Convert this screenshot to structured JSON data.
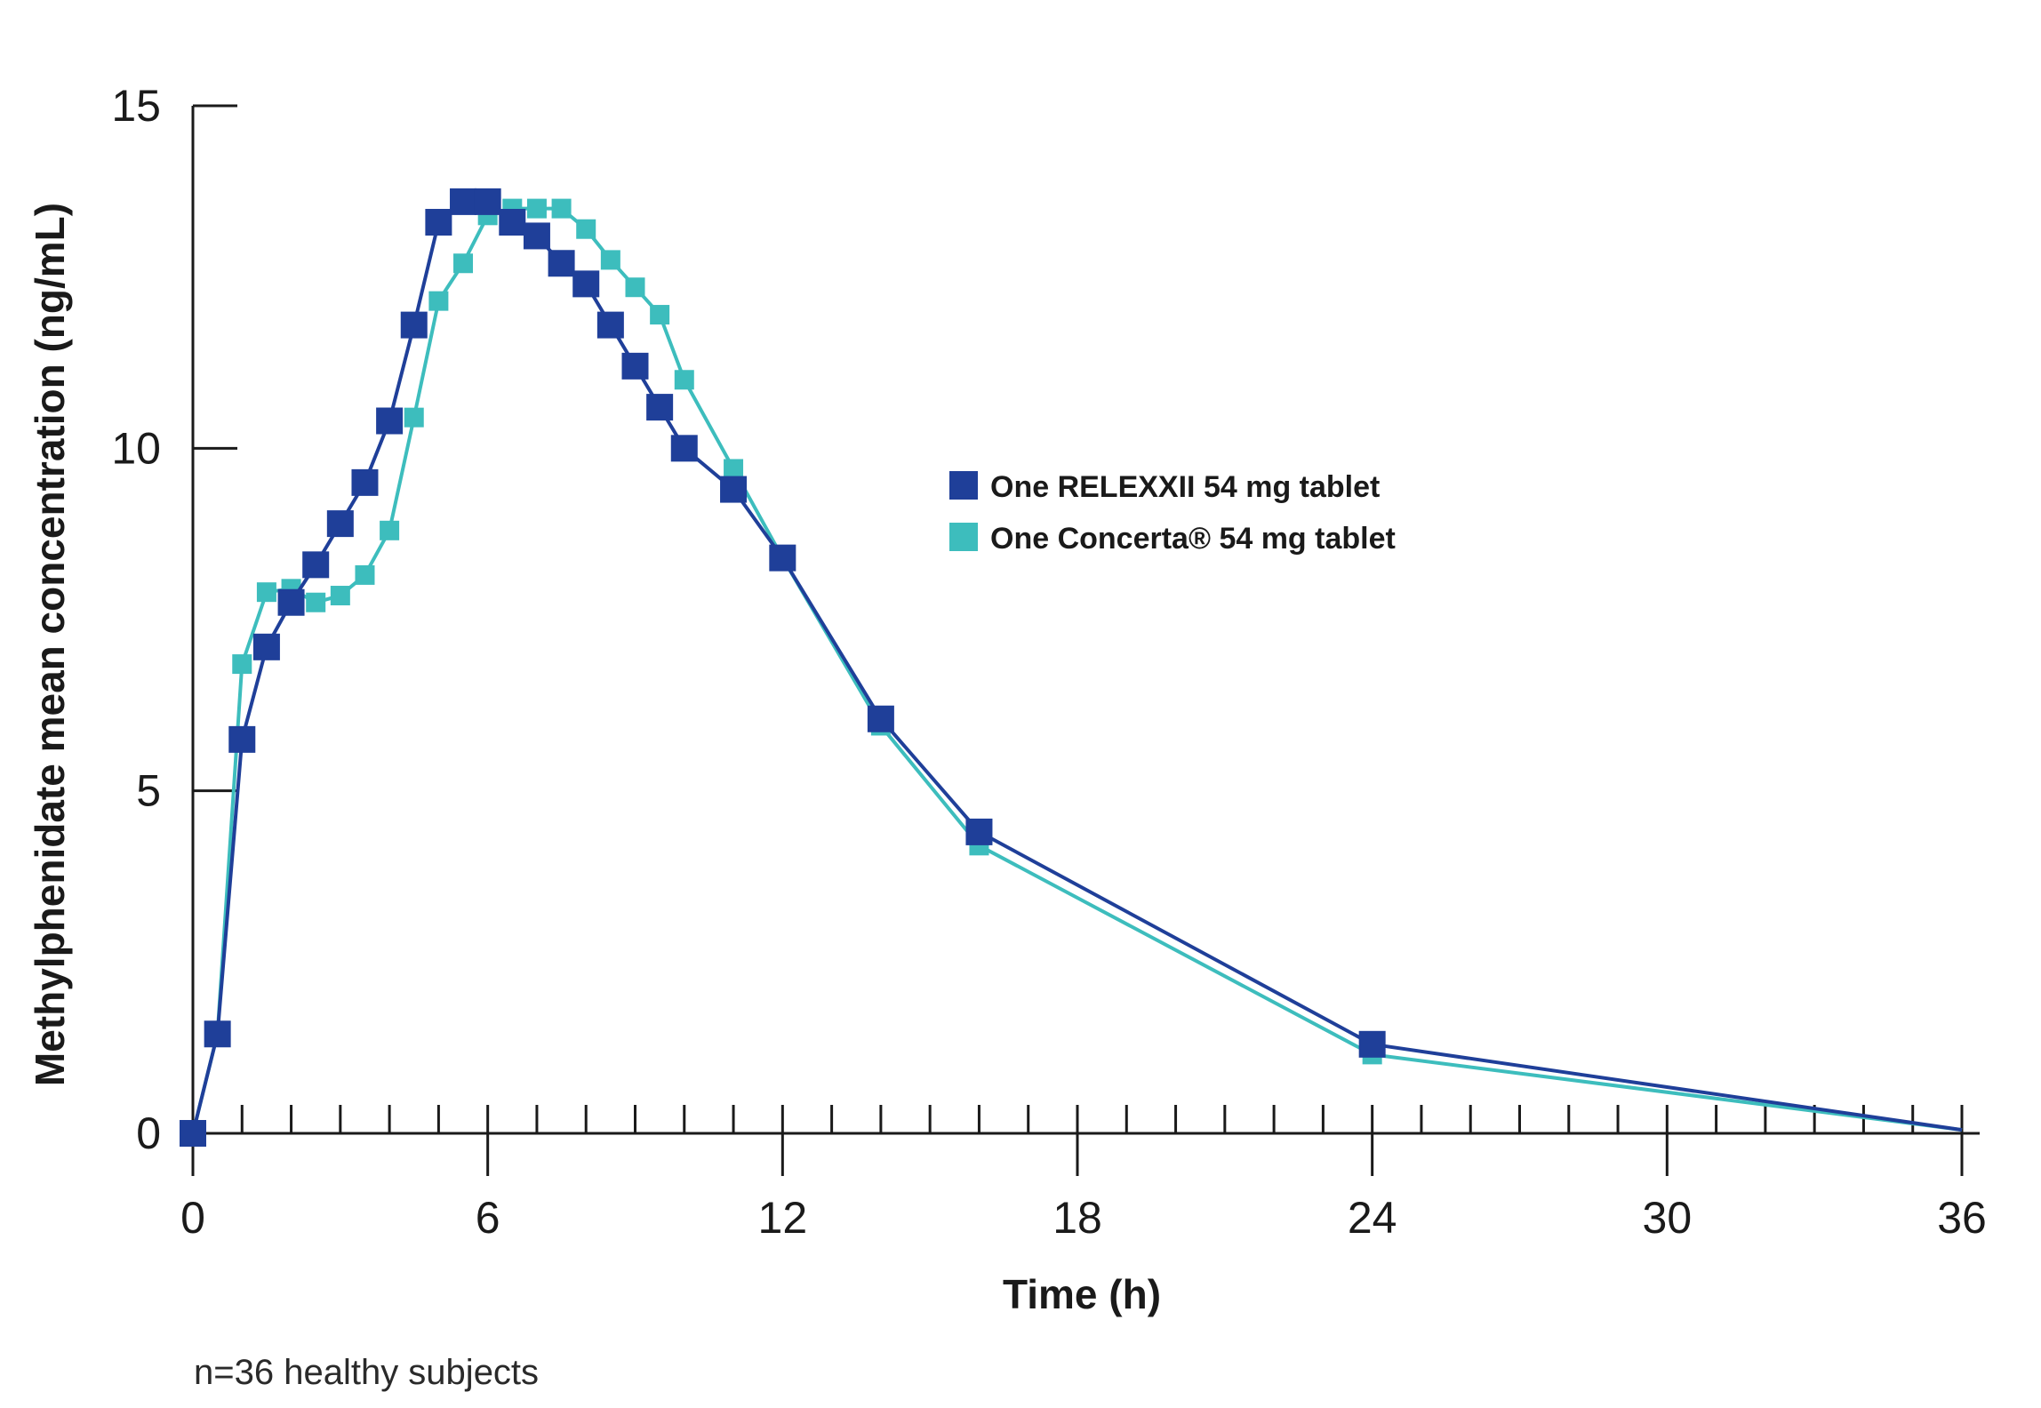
{
  "chart_data": {
    "type": "line",
    "title": "",
    "xlabel": "Time (h)",
    "ylabel": "Methylphenidate mean concentration (ng/mL)",
    "xlim": [
      0,
      36
    ],
    "ylim": [
      0,
      15
    ],
    "x_ticks": [
      0,
      6,
      12,
      18,
      24,
      30,
      36
    ],
    "x_tick_labels": [
      "0",
      "6",
      "12",
      "18",
      "24",
      "30",
      "36"
    ],
    "x_minor_tick_interval": 1,
    "y_ticks": [
      0,
      5,
      10,
      15
    ],
    "y_tick_labels": [
      "0",
      "5",
      "10",
      "15"
    ],
    "grid": false,
    "legend_position": "center-right",
    "footnote": "n=36 healthy subjects",
    "series": [
      {
        "name": "One RELEXXII 54 mg tablet",
        "color": "#1f3f99",
        "marker": "square",
        "points": [
          [
            0,
            0
          ],
          [
            0.5,
            1.45
          ],
          [
            1,
            5.75
          ],
          [
            1.5,
            7.1
          ],
          [
            2,
            7.75
          ],
          [
            2.5,
            8.3
          ],
          [
            3,
            8.9
          ],
          [
            3.5,
            9.5
          ],
          [
            4,
            10.4
          ],
          [
            4.5,
            11.8
          ],
          [
            5,
            13.3
          ],
          [
            5.5,
            13.6
          ],
          [
            6,
            13.6
          ],
          [
            6.5,
            13.3
          ],
          [
            7,
            13.1
          ],
          [
            7.5,
            12.7
          ],
          [
            8,
            12.4
          ],
          [
            8.5,
            11.8
          ],
          [
            9,
            11.2
          ],
          [
            9.5,
            10.6
          ],
          [
            10,
            10.0
          ],
          [
            11,
            9.4
          ],
          [
            12,
            8.4
          ],
          [
            14,
            6.05
          ],
          [
            16,
            4.4
          ],
          [
            24,
            1.3
          ],
          [
            36,
            0.05
          ]
        ]
      },
      {
        "name": "One Concerta® 54 mg tablet",
        "color": "#3dbdbd",
        "marker": "square",
        "points": [
          [
            0,
            0
          ],
          [
            0.5,
            1.45
          ],
          [
            1,
            6.85
          ],
          [
            1.5,
            7.9
          ],
          [
            2,
            7.95
          ],
          [
            2.5,
            7.75
          ],
          [
            3,
            7.85
          ],
          [
            3.5,
            8.15
          ],
          [
            4,
            8.8
          ],
          [
            4.5,
            10.45
          ],
          [
            5,
            12.15
          ],
          [
            5.5,
            12.7
          ],
          [
            6,
            13.4
          ],
          [
            6.5,
            13.5
          ],
          [
            7,
            13.5
          ],
          [
            7.5,
            13.5
          ],
          [
            8,
            13.2
          ],
          [
            8.5,
            12.75
          ],
          [
            9,
            12.35
          ],
          [
            9.5,
            11.95
          ],
          [
            10,
            11.0
          ],
          [
            11,
            9.7
          ],
          [
            12,
            8.4
          ],
          [
            14,
            5.95
          ],
          [
            16,
            4.2
          ],
          [
            24,
            1.15
          ],
          [
            36,
            0.05
          ]
        ]
      }
    ]
  }
}
